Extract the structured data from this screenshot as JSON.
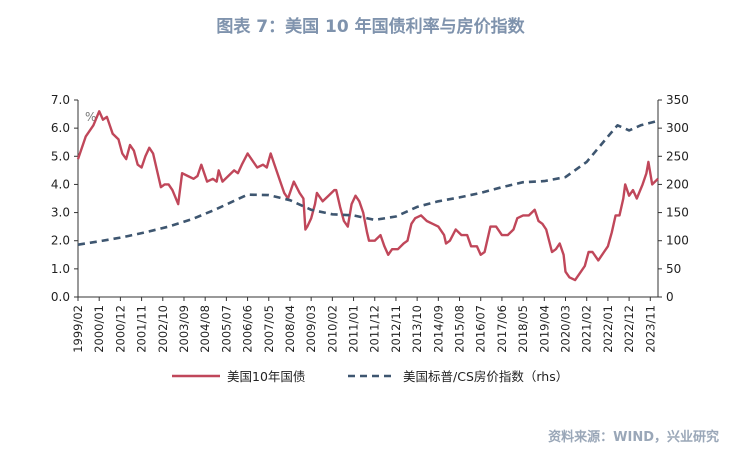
{
  "figure": {
    "title": "图表 7：美国 10 年国债利率与房价指数",
    "source": "资料来源：WIND，兴业研究"
  },
  "chart_data": {
    "type": "line",
    "left_axis": {
      "min": 0,
      "max": 7,
      "step": 1,
      "tick_labels": [
        "0.0",
        "1.0",
        "2.0",
        "3.0",
        "4.0",
        "5.0",
        "6.0",
        "7.0"
      ],
      "unit_label": "%"
    },
    "right_axis": {
      "min": 0,
      "max": 350,
      "step": 50,
      "tick_labels": [
        "0",
        "50",
        "100",
        "150",
        "200",
        "250",
        "300",
        "350"
      ]
    },
    "x_range": [
      "1999-02",
      "2024-03"
    ],
    "x_tick_labels": [
      "1999/02",
      "2000/01",
      "2000/12",
      "2001/11",
      "2002/10",
      "2003/09",
      "2004/08",
      "2005/07",
      "2006/06",
      "2007/05",
      "2008/04",
      "2009/03",
      "2010/02",
      "2011/01",
      "2011/12",
      "2012/11",
      "2013/10",
      "2014/09",
      "2015/08",
      "2016/07",
      "2017/06",
      "2018/05",
      "2019/04",
      "2020/03",
      "2021/02",
      "2022/01",
      "2022/12",
      "2023/11"
    ],
    "grid": false,
    "legend": "bottom",
    "series": [
      {
        "name": "美国10年国债",
        "axis": "left",
        "color": "#c0475a",
        "dash": "solid",
        "points": [
          [
            "1999-02",
            4.9
          ],
          [
            "1999-06",
            5.7
          ],
          [
            "1999-10",
            6.1
          ],
          [
            "2000-01",
            6.6
          ],
          [
            "2000-03",
            6.3
          ],
          [
            "2000-05",
            6.4
          ],
          [
            "2000-08",
            5.8
          ],
          [
            "2000-11",
            5.6
          ],
          [
            "2001-01",
            5.1
          ],
          [
            "2001-03",
            4.9
          ],
          [
            "2001-05",
            5.4
          ],
          [
            "2001-07",
            5.2
          ],
          [
            "2001-09",
            4.7
          ],
          [
            "2001-11",
            4.6
          ],
          [
            "2002-01",
            5.0
          ],
          [
            "2002-03",
            5.3
          ],
          [
            "2002-05",
            5.1
          ],
          [
            "2002-07",
            4.5
          ],
          [
            "2002-09",
            3.9
          ],
          [
            "2002-11",
            4.0
          ],
          [
            "2003-01",
            4.0
          ],
          [
            "2003-03",
            3.8
          ],
          [
            "2003-06",
            3.3
          ],
          [
            "2003-08",
            4.4
          ],
          [
            "2003-11",
            4.3
          ],
          [
            "2004-02",
            4.2
          ],
          [
            "2004-04",
            4.3
          ],
          [
            "2004-06",
            4.7
          ],
          [
            "2004-09",
            4.1
          ],
          [
            "2004-12",
            4.2
          ],
          [
            "2005-02",
            4.1
          ],
          [
            "2005-03",
            4.5
          ],
          [
            "2005-05",
            4.1
          ],
          [
            "2005-08",
            4.3
          ],
          [
            "2005-11",
            4.5
          ],
          [
            "2006-01",
            4.4
          ],
          [
            "2006-03",
            4.7
          ],
          [
            "2006-06",
            5.1
          ],
          [
            "2006-08",
            4.9
          ],
          [
            "2006-11",
            4.6
          ],
          [
            "2007-02",
            4.7
          ],
          [
            "2007-04",
            4.6
          ],
          [
            "2007-06",
            5.1
          ],
          [
            "2007-08",
            4.7
          ],
          [
            "2007-11",
            4.1
          ],
          [
            "2008-01",
            3.7
          ],
          [
            "2008-03",
            3.5
          ],
          [
            "2008-06",
            4.1
          ],
          [
            "2008-09",
            3.7
          ],
          [
            "2008-11",
            3.5
          ],
          [
            "2008-12",
            2.4
          ],
          [
            "2009-01",
            2.5
          ],
          [
            "2009-03",
            2.8
          ],
          [
            "2009-05",
            3.3
          ],
          [
            "2009-06",
            3.7
          ],
          [
            "2009-09",
            3.4
          ],
          [
            "2009-12",
            3.6
          ],
          [
            "2010-03",
            3.8
          ],
          [
            "2010-04",
            3.8
          ],
          [
            "2010-06",
            3.2
          ],
          [
            "2010-08",
            2.7
          ],
          [
            "2010-10",
            2.5
          ],
          [
            "2010-12",
            3.3
          ],
          [
            "2011-02",
            3.6
          ],
          [
            "2011-04",
            3.4
          ],
          [
            "2011-06",
            3.0
          ],
          [
            "2011-08",
            2.3
          ],
          [
            "2011-09",
            2.0
          ],
          [
            "2011-12",
            2.0
          ],
          [
            "2012-03",
            2.2
          ],
          [
            "2012-05",
            1.8
          ],
          [
            "2012-07",
            1.5
          ],
          [
            "2012-09",
            1.7
          ],
          [
            "2012-12",
            1.7
          ],
          [
            "2013-03",
            1.9
          ],
          [
            "2013-05",
            2.0
          ],
          [
            "2013-07",
            2.6
          ],
          [
            "2013-09",
            2.8
          ],
          [
            "2013-12",
            2.9
          ],
          [
            "2014-03",
            2.7
          ],
          [
            "2014-06",
            2.6
          ],
          [
            "2014-09",
            2.5
          ],
          [
            "2014-12",
            2.2
          ],
          [
            "2015-01",
            1.9
          ],
          [
            "2015-03",
            2.0
          ],
          [
            "2015-06",
            2.4
          ],
          [
            "2015-09",
            2.2
          ],
          [
            "2015-12",
            2.2
          ],
          [
            "2016-02",
            1.8
          ],
          [
            "2016-05",
            1.8
          ],
          [
            "2016-07",
            1.5
          ],
          [
            "2016-09",
            1.6
          ],
          [
            "2016-12",
            2.5
          ],
          [
            "2017-03",
            2.5
          ],
          [
            "2017-06",
            2.2
          ],
          [
            "2017-09",
            2.2
          ],
          [
            "2017-12",
            2.4
          ],
          [
            "2018-02",
            2.8
          ],
          [
            "2018-05",
            2.9
          ],
          [
            "2018-08",
            2.9
          ],
          [
            "2018-11",
            3.1
          ],
          [
            "2019-01",
            2.7
          ],
          [
            "2019-03",
            2.6
          ],
          [
            "2019-05",
            2.4
          ],
          [
            "2019-08",
            1.6
          ],
          [
            "2019-10",
            1.7
          ],
          [
            "2019-12",
            1.9
          ],
          [
            "2020-02",
            1.5
          ],
          [
            "2020-03",
            0.9
          ],
          [
            "2020-05",
            0.7
          ],
          [
            "2020-08",
            0.6
          ],
          [
            "2020-11",
            0.9
          ],
          [
            "2021-01",
            1.1
          ],
          [
            "2021-03",
            1.6
          ],
          [
            "2021-05",
            1.6
          ],
          [
            "2021-08",
            1.3
          ],
          [
            "2021-11",
            1.6
          ],
          [
            "2022-01",
            1.8
          ],
          [
            "2022-03",
            2.3
          ],
          [
            "2022-05",
            2.9
          ],
          [
            "2022-07",
            2.9
          ],
          [
            "2022-09",
            3.5
          ],
          [
            "2022-10",
            4.0
          ],
          [
            "2022-12",
            3.6
          ],
          [
            "2023-02",
            3.8
          ],
          [
            "2023-04",
            3.5
          ],
          [
            "2023-07",
            4.0
          ],
          [
            "2023-09",
            4.4
          ],
          [
            "2023-10",
            4.8
          ],
          [
            "2023-12",
            4.0
          ],
          [
            "2024-03",
            4.2
          ]
        ]
      },
      {
        "name": "美国标普/CS房价指数（rhs）",
        "axis": "right",
        "color": "#3e5670",
        "dash": "dashed",
        "points": [
          [
            "1999-02",
            93
          ],
          [
            "2000-01",
            99
          ],
          [
            "2001-01",
            106
          ],
          [
            "2002-01",
            115
          ],
          [
            "2003-01",
            125
          ],
          [
            "2004-01",
            138
          ],
          [
            "2005-01",
            155
          ],
          [
            "2006-01",
            174
          ],
          [
            "2006-06",
            182
          ],
          [
            "2007-05",
            181
          ],
          [
            "2008-04",
            172
          ],
          [
            "2009-03",
            155
          ],
          [
            "2010-02",
            147
          ],
          [
            "2011-01",
            145
          ],
          [
            "2011-12",
            137
          ],
          [
            "2012-11",
            143
          ],
          [
            "2013-10",
            160
          ],
          [
            "2014-09",
            170
          ],
          [
            "2015-08",
            177
          ],
          [
            "2016-07",
            185
          ],
          [
            "2017-06",
            195
          ],
          [
            "2018-05",
            204
          ],
          [
            "2019-04",
            206
          ],
          [
            "2020-03",
            213
          ],
          [
            "2021-02",
            240
          ],
          [
            "2022-01",
            285
          ],
          [
            "2022-06",
            305
          ],
          [
            "2022-12",
            296
          ],
          [
            "2023-06",
            305
          ],
          [
            "2024-03",
            313
          ]
        ]
      }
    ]
  }
}
